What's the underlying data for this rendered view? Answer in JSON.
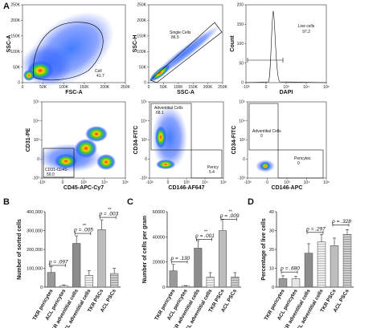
{
  "panel_A": {
    "letter": "A",
    "plots": [
      {
        "id": "fsc-ssc",
        "xlabel": "FSC-A",
        "ylabel": "SSC-A",
        "xticks": [
          "0",
          "50K",
          "100K",
          "150K",
          "200K",
          "250K"
        ],
        "yticks": [
          "0",
          "50K",
          "100K",
          "150K",
          "200K",
          "250K"
        ],
        "gates": [
          {
            "name": "Cell",
            "value": "41.7"
          }
        ]
      },
      {
        "id": "ssc-singlets",
        "xlabel": "SSC-A",
        "ylabel": "SSC-H",
        "xticks": [
          "0",
          "50K",
          "100K",
          "150K",
          "200K",
          "250K"
        ],
        "yticks": [
          "0",
          "50K",
          "100K",
          "150K",
          "200K",
          "250K"
        ],
        "gates": [
          {
            "name": "Single Cells",
            "value": "86.5"
          }
        ]
      },
      {
        "id": "dapi",
        "xlabel": "DAPI",
        "ylabel": "Count",
        "xticks": [
          "-10³",
          "0",
          "10³",
          "10⁴",
          "10⁵"
        ],
        "yticks": [
          "0",
          "50",
          "100",
          "150",
          "200"
        ],
        "gates": [
          {
            "name": "Live cells",
            "value": "97.2"
          }
        ]
      },
      {
        "id": "cd31-cd45",
        "xlabel": "CD45-APC-Cy7",
        "ylabel": "CD31-PE",
        "xticks": [
          "-10³",
          "0",
          "10³",
          "10⁴",
          "10⁵"
        ],
        "yticks": [
          "-10³",
          "0",
          "10³",
          "10⁴",
          "10⁵"
        ],
        "gates": [
          {
            "name": "CD31-CD45-",
            "value": "59.0"
          }
        ]
      },
      {
        "id": "cd34-cd146",
        "xlabel": "CD146-AF647",
        "ylabel": "CD34-FITC",
        "xticks": [
          "-10³",
          "0",
          "10³",
          "10⁴",
          "10⁵"
        ],
        "yticks": [
          "-10³",
          "0",
          "10³",
          "10⁴",
          "10⁵"
        ],
        "gates": [
          {
            "name": "Adventitial Cells",
            "value": "68.1"
          },
          {
            "name": "Pericy",
            "value": "5.4"
          }
        ]
      },
      {
        "id": "cd34-cd146-apc",
        "xlabel": "CD146-APC",
        "ylabel": "CD34-FITC",
        "xticks": [
          "-10³",
          "0",
          "10³",
          "10⁴",
          "10⁵"
        ],
        "yticks": [
          "-10³",
          "0",
          "10³",
          "10⁴",
          "10⁵"
        ],
        "gates": [
          {
            "name": "Adventitial Cells",
            "value": "0"
          },
          {
            "name": "Pericytes",
            "value": "0"
          }
        ]
      }
    ]
  },
  "categories": [
    "TKR pericytes",
    "ACL pericytes",
    "TKR adventitial cells",
    "ACL adventitial cells",
    "TKR PSCs",
    "ACL PSCs"
  ],
  "chart_data": [
    {
      "letter": "B",
      "type": "bar",
      "ylabel": "Number of sorted cells",
      "ylim": [
        0,
        400000
      ],
      "yticks": [
        "0",
        "100,000",
        "200,000",
        "300,000",
        "400,000"
      ],
      "values": [
        78000,
        8000,
        232000,
        62000,
        305000,
        72000
      ],
      "errors": [
        32000,
        4000,
        40000,
        25000,
        52000,
        28000
      ],
      "comparisons": [
        {
          "p": "p = .097",
          "pair": [
            0,
            1
          ],
          "stars": "",
          "level": 115000
        },
        {
          "p": "p = .005",
          "pair": [
            2,
            3
          ],
          "stars": "**",
          "level": 285000
        },
        {
          "p": "p = .003",
          "pair": [
            4,
            5
          ],
          "stars": "**",
          "level": 370000
        }
      ]
    },
    {
      "letter": "C",
      "type": "bar",
      "ylabel": "Number of cells per gram",
      "ylim": [
        0,
        60000
      ],
      "yticks": [
        "0",
        "20000",
        "40000",
        "60000"
      ],
      "values": [
        13000,
        800,
        31000,
        8000,
        45000,
        8000
      ],
      "errors": [
        5000,
        400,
        6000,
        3500,
        9000,
        3500
      ],
      "comparisons": [
        {
          "p": "p = .130",
          "pair": [
            0,
            1
          ],
          "stars": "",
          "level": 20000
        },
        {
          "p": "p = .001",
          "pair": [
            2,
            3
          ],
          "stars": "**",
          "level": 38000
        },
        {
          "p": "p = .009",
          "pair": [
            4,
            5
          ],
          "stars": "**",
          "level": 54000
        }
      ]
    },
    {
      "letter": "D",
      "type": "bar",
      "ylabel": "Percentage of live cells",
      "ylim": [
        0,
        40
      ],
      "yticks": [
        "0",
        "10",
        "20",
        "30",
        "40"
      ],
      "values": [
        4.5,
        4.5,
        18,
        24,
        22,
        28
      ],
      "errors": [
        1.5,
        1.2,
        5,
        4,
        4,
        2.5
      ],
      "comparisons": [
        {
          "p": "p = .680",
          "pair": [
            0,
            1
          ],
          "stars": "",
          "level": 8
        },
        {
          "p": "p = .297",
          "pair": [
            2,
            3
          ],
          "stars": "",
          "level": 29
        },
        {
          "p": "p = .328",
          "pair": [
            4,
            5
          ],
          "stars": "",
          "level": 33
        }
      ]
    }
  ],
  "colors": {
    "tkr_pericytes": "#999999",
    "acl_pericytes": "#e6e6e6",
    "tkr_adventitial": "#8c8c8c",
    "acl_adventitial": "#d9d9d9",
    "tkr_psc": "#bdbdbd",
    "acl_psc": "#a6a6a6"
  }
}
